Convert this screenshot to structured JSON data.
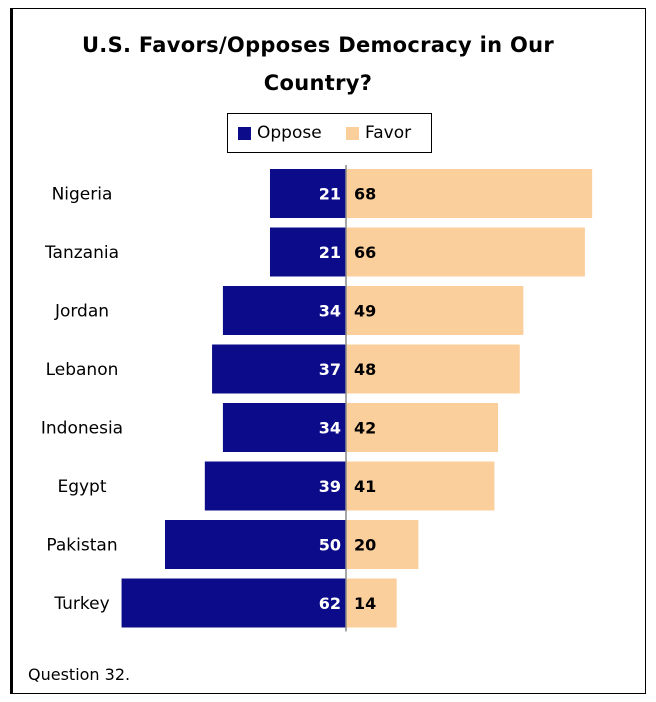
{
  "chart_data": {
    "type": "bar",
    "orientation": "horizontal-diverging",
    "title": "U.S. Favors/Opposes Democracy in Our Country?",
    "title_lines": [
      "U.S. Favors/Opposes Democracy in Our",
      "Country?"
    ],
    "categories": [
      "Nigeria",
      "Tanzania",
      "Jordan",
      "Lebanon",
      "Indonesia",
      "Egypt",
      "Pakistan",
      "Turkey"
    ],
    "series": [
      {
        "name": "Oppose",
        "color": "#0c0c8a",
        "values": [
          21,
          21,
          34,
          37,
          34,
          39,
          50,
          62
        ]
      },
      {
        "name": "Favor",
        "color": "#fbcf9c",
        "values": [
          68,
          66,
          49,
          48,
          42,
          41,
          20,
          14
        ]
      }
    ],
    "legend_position": "top-center",
    "grid": false
  },
  "footnote": "Question 32."
}
